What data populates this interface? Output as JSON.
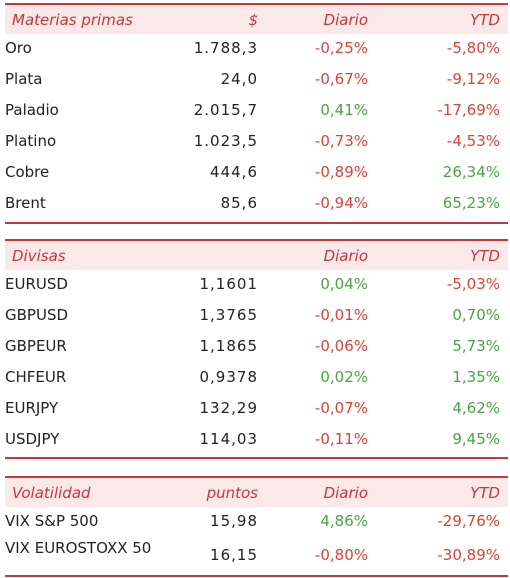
{
  "sections": [
    {
      "headers": [
        "Materias primas",
        "$",
        "Diario",
        "YTD"
      ],
      "rows": [
        {
          "name": "Oro",
          "value": "1.788,3",
          "daily": "-0,25%",
          "ytd": "-5,80%"
        },
        {
          "name": "Plata",
          "value": "24,0",
          "daily": "-0,67%",
          "ytd": "-9,12%"
        },
        {
          "name": "Paladio",
          "value": "2.015,7",
          "daily": "0,41%",
          "ytd": "-17,69%"
        },
        {
          "name": "Platino",
          "value": "1.023,5",
          "daily": "-0,73%",
          "ytd": "-4,53%"
        },
        {
          "name": "Cobre",
          "value": "444,6",
          "daily": "-0,89%",
          "ytd": "26,34%"
        },
        {
          "name": "Brent",
          "value": "85,6",
          "daily": "-0,94%",
          "ytd": "65,23%"
        }
      ]
    },
    {
      "headers": [
        "Divisas",
        "",
        "Diario",
        "YTD"
      ],
      "rows": [
        {
          "name": "EURUSD",
          "value": "1,1601",
          "daily": "0,04%",
          "ytd": "-5,03%"
        },
        {
          "name": "GBPUSD",
          "value": "1,3765",
          "daily": "-0,01%",
          "ytd": "0,70%"
        },
        {
          "name": "GBPEUR",
          "value": "1,1865",
          "daily": "-0,06%",
          "ytd": "5,73%"
        },
        {
          "name": "CHFEUR",
          "value": "0,9378",
          "daily": "0,02%",
          "ytd": "1,35%"
        },
        {
          "name": "EURJPY",
          "value": "132,29",
          "daily": "-0,07%",
          "ytd": "4,62%"
        },
        {
          "name": "USDJPY",
          "value": "114,03",
          "daily": "-0,11%",
          "ytd": "9,45%"
        }
      ]
    },
    {
      "headers": [
        "Volatilidad",
        "puntos",
        "Diario",
        "YTD"
      ],
      "rows": [
        {
          "name": "VIX S&P 500",
          "value": "15,98",
          "daily": "4,86%",
          "ytd": "-29,76%"
        },
        {
          "name": "VIX EUROSTOXX 50",
          "value": "16,15",
          "daily": "-0,80%",
          "ytd": "-30,89%"
        }
      ]
    }
  ],
  "colors": {
    "accent": "#c0393b",
    "header_bg": "#fbe9e9",
    "positive": "#4ea148",
    "negative": "#d9443a"
  }
}
